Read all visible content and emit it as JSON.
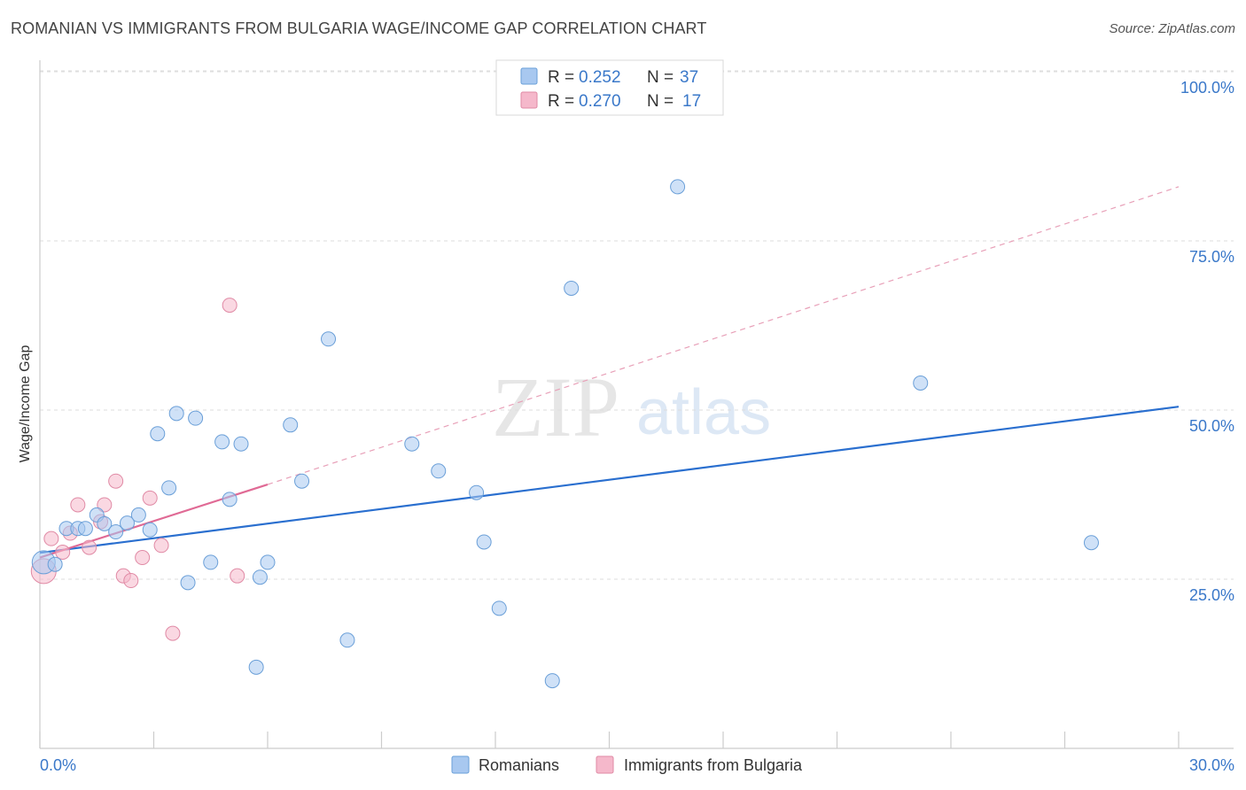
{
  "header": {
    "title": "ROMANIAN VS IMMIGRANTS FROM BULGARIA WAGE/INCOME GAP CORRELATION CHART",
    "source": "Source: ZipAtlas.com"
  },
  "watermark": {
    "zip": "ZIP",
    "atlas": "atlas"
  },
  "legend": {
    "r_label": "R =",
    "n_label": "N =",
    "rows": [
      {
        "r": "0.252",
        "n": "37",
        "color": "#a8c8f0"
      },
      {
        "r": "0.270",
        "n": "17",
        "color": "#f5b8cb"
      }
    ]
  },
  "chart_data": {
    "type": "scatter",
    "title": "ROMANIAN VS IMMIGRANTS FROM BULGARIA WAGE/INCOME GAP CORRELATION CHART",
    "xlabel": "",
    "ylabel": "Wage/Income Gap",
    "xlim": [
      0,
      30
    ],
    "ylim": [
      0,
      100
    ],
    "x_tick_labels": [
      "0.0%",
      "30.0%"
    ],
    "y_tick_labels": [
      "25.0%",
      "50.0%",
      "75.0%",
      "100.0%"
    ],
    "y_ticks": [
      25,
      50,
      75,
      100
    ],
    "grid": true,
    "legend_position": "top-center",
    "series": [
      {
        "name": "Romanians",
        "color": "#a8c8f0",
        "stroke": "#6a9fd8",
        "trend_color": "#2a6fcf",
        "trend": [
          [
            0,
            28.9
          ],
          [
            30,
            50.5
          ]
        ],
        "points": [
          [
            0.1,
            27.5
          ],
          [
            0.4,
            27.2
          ],
          [
            0.7,
            32.5
          ],
          [
            1.0,
            32.5
          ],
          [
            1.2,
            32.5
          ],
          [
            1.5,
            34.5
          ],
          [
            1.7,
            33.2
          ],
          [
            2.0,
            32.0
          ],
          [
            2.3,
            33.3
          ],
          [
            2.6,
            34.5
          ],
          [
            2.9,
            32.3
          ],
          [
            3.1,
            46.5
          ],
          [
            3.4,
            38.5
          ],
          [
            3.6,
            49.5
          ],
          [
            3.9,
            24.5
          ],
          [
            4.1,
            48.8
          ],
          [
            4.5,
            27.5
          ],
          [
            4.8,
            45.3
          ],
          [
            5.0,
            36.8
          ],
          [
            5.3,
            45.0
          ],
          [
            5.7,
            12.0
          ],
          [
            5.8,
            25.3
          ],
          [
            6.0,
            27.5
          ],
          [
            6.6,
            47.8
          ],
          [
            6.9,
            39.5
          ],
          [
            7.6,
            60.5
          ],
          [
            8.1,
            16.0
          ],
          [
            9.8,
            45.0
          ],
          [
            10.5,
            41.0
          ],
          [
            11.5,
            37.8
          ],
          [
            11.7,
            30.5
          ],
          [
            12.1,
            20.7
          ],
          [
            13.5,
            10.0
          ],
          [
            14.0,
            68.0
          ],
          [
            16.8,
            83.0
          ],
          [
            23.2,
            54.0
          ],
          [
            27.7,
            30.4
          ]
        ]
      },
      {
        "name": "Immigrants from Bulgaria",
        "color": "#f5b8cb",
        "stroke": "#e08aa5",
        "trend_color": "#e06a95",
        "trend": [
          [
            0,
            28.2
          ],
          [
            6.0,
            39.0
          ]
        ],
        "trend_ext": [
          [
            6.0,
            39.0
          ],
          [
            30,
            83.0
          ]
        ],
        "points": [
          [
            0.1,
            26.2
          ],
          [
            0.3,
            31.0
          ],
          [
            0.6,
            29.0
          ],
          [
            0.8,
            31.8
          ],
          [
            1.0,
            36.0
          ],
          [
            1.3,
            29.7
          ],
          [
            1.6,
            33.5
          ],
          [
            1.7,
            36.0
          ],
          [
            2.0,
            39.5
          ],
          [
            2.2,
            25.5
          ],
          [
            2.4,
            24.8
          ],
          [
            2.7,
            28.2
          ],
          [
            2.9,
            37.0
          ],
          [
            3.2,
            30.0
          ],
          [
            3.5,
            17.0
          ],
          [
            5.0,
            65.5
          ],
          [
            5.2,
            25.5
          ]
        ]
      }
    ]
  },
  "bottom_legend": [
    "Romanians",
    "Immigrants from Bulgaria"
  ]
}
